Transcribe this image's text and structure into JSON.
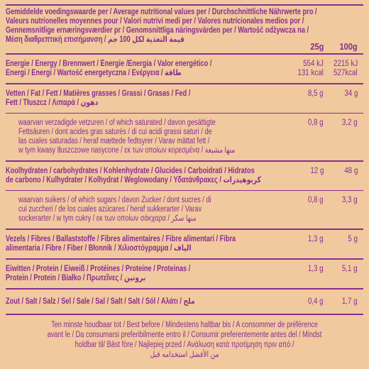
{
  "header": {
    "lines": [
      "Gemiddelde voedingswaarde per / Average nutritional values per / Durchschnittliche Nährwerte pro /",
      "Valeurs nutrionelles moyennes pour / Valori nutrivi medi per / Valores nutricionales medios por /",
      "Gennemsnitlige ernæringsværdier pr / Genomsnittliga näringsvärden per / Wartość odżywcza na /",
      "Μέση διαθρεπτική επισήμανση / قيمة التغذية لكل 100 جم"
    ],
    "col1": "25g",
    "col2": "100g"
  },
  "rows": [
    {
      "label_lines": [
        "Energie / Energy / Brennwert / Énergie /Energia / Valor energético /",
        "Energi / Energi / Wartość energetyczna / Ενέργεια / طاقة"
      ],
      "per_25g": [
        "554 kJ",
        "131 kcal"
      ],
      "per_100g": [
        "2215 kJ",
        "527kcal"
      ]
    },
    {
      "label_lines": [
        "Vetten / Fat / Fett / Matières grasses / Grassi / Grasas / Fed /",
        "Fett / Tłuszcz / Λιπαρά / دهون"
      ],
      "per_25g": [
        "8,5 g"
      ],
      "per_100g": [
        "34 g"
      ],
      "sub_rows": [
        {
          "label_lines": [
            "waarvan verzadigde vetzuren / of which saturated / davon gesättigte",
            "Fettsäuren / dont acides gras saturés / di cui acidi grassi saturi / de",
            "las cuales saturadas / heraf mættede fedtsyrer / Varav mättat fett /",
            "w tym kwasy tłuszczowe nasycone / εκ των οποίων κορεσμένα / منها مشبعة"
          ],
          "per_25g": [
            "0,8 g"
          ],
          "per_100g": [
            "3,2 g"
          ]
        }
      ]
    },
    {
      "label_lines": [
        "Koolhydraten / carbohydrates / Kohlenhydrate / Glucides / Carboidrati / Hidratos",
        "de carbono / Kulhydrater / Kolhydrat / Weglowodany / Υδατάνθρακες / كربوهيدرات"
      ],
      "per_25g": [
        "12 g"
      ],
      "per_100g": [
        "48 g"
      ],
      "sub_rows": [
        {
          "label_lines": [
            "waarvan suikers / of which sugars / davon Zucker / dont sucres / di",
            "cui zuccheri / de los cuales azúcares / heraf sukkerarter / Varav",
            "sockerarter / w tym cukry / εκ των οποίων σάκχαρα / منها سكر"
          ],
          "per_25g": [
            "0,8 g"
          ],
          "per_100g": [
            "3,3 g"
          ]
        }
      ]
    },
    {
      "label_lines": [
        "Vezels / Fibres / Ballaststoffe / Fibres alimentaires / Fibre alimentari / Fibra",
        "alimentaria / Fibre / Fiber / Błonnik / Χιλιοστόγραμμα / الياف"
      ],
      "per_25g": [
        "1,3 g"
      ],
      "per_100g": [
        "5 g"
      ]
    },
    {
      "label_lines": [
        "Eiwitten / Protein / Eiweiß / Protéines / Proteine / Proteinas /",
        "Protein / Protein / Białko / Πρωτεΐνες / بروتين"
      ],
      "per_25g": [
        "1,3 g"
      ],
      "per_100g": [
        "5,1 g"
      ]
    },
    {
      "label_lines": [
        "Zout / Salt / Salz / Sel / Sale / Sal / Salt / Salt / Sól / Αλάτι / ملح"
      ],
      "per_25g": [
        "0,4 g"
      ],
      "per_100g": [
        "1,7 g"
      ]
    }
  ],
  "footer": {
    "lines": [
      "Ten minste houdbaar tot / Best before / Mindestens haltbar bis / A consommer de préférence",
      "avant le / Da consumarsi preferibilmente entro il / Consumir preferentemente antes del / Mindst",
      "holdbar til/ Bäst före / Najlepiej przed / Ανάλωση κατά προτίμηση πριν από /",
      "من الأفضل استخدامه قبل"
    ]
  }
}
